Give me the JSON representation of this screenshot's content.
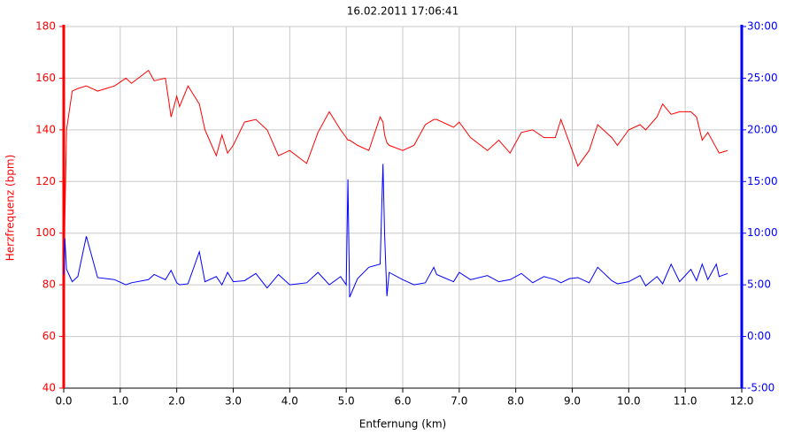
{
  "chart_data": {
    "type": "line",
    "title": "16.02.2011 17:06:41",
    "xlabel": "Entfernung (km)",
    "ylabel": "Herzfrequenz (bpm)",
    "x": [
      0,
      0.02,
      0.05,
      0.15,
      0.25,
      0.4,
      0.6,
      0.9,
      1.1,
      1.2,
      1.5,
      1.6,
      1.8,
      1.9,
      2.0,
      2.05,
      2.2,
      2.4,
      2.5,
      2.7,
      2.8,
      2.9,
      3.0,
      3.2,
      3.4,
      3.6,
      3.8,
      4.0,
      4.3,
      4.5,
      4.7,
      4.9,
      5.0,
      5.03,
      5.06,
      5.2,
      5.4,
      5.6,
      5.65,
      5.68,
      5.72,
      5.76,
      6.0,
      6.2,
      6.4,
      6.55,
      6.6,
      6.9,
      7.0,
      7.2,
      7.5,
      7.7,
      7.9,
      8.1,
      8.3,
      8.5,
      8.7,
      8.8,
      8.95,
      9.1,
      9.3,
      9.45,
      9.7,
      9.8,
      10.0,
      10.2,
      10.3,
      10.5,
      10.6,
      10.75,
      10.9,
      11.1,
      11.2,
      11.3,
      11.4,
      11.55,
      11.6,
      11.75
    ],
    "series": [
      {
        "color": "#ff0000",
        "values": [
          68,
          105,
          140,
          155,
          156,
          157,
          155,
          157,
          160,
          158,
          163,
          159,
          160,
          145,
          153,
          149,
          157,
          150,
          140,
          130,
          138,
          131,
          134,
          143,
          144,
          140,
          130,
          132,
          127,
          139,
          147,
          140,
          137,
          136,
          136,
          134,
          132,
          145,
          143,
          138,
          135,
          134,
          132,
          134,
          142,
          144,
          144,
          141,
          143,
          137,
          132,
          136,
          131,
          139,
          140,
          137,
          137,
          144,
          135,
          126,
          132,
          142,
          137,
          134,
          140,
          142,
          140,
          145,
          150,
          146,
          147,
          147,
          145,
          136,
          139,
          133,
          131,
          132
        ]
      },
      {
        "color": "#0000ff",
        "axis": "y2",
        "values": [
          6.0,
          9.5,
          6.5,
          5.3,
          5.8,
          9.7,
          5.7,
          5.5,
          5.0,
          5.2,
          5.5,
          6.0,
          5.5,
          6.4,
          5.2,
          5.0,
          5.1,
          8.2,
          5.3,
          5.8,
          5.0,
          6.2,
          5.3,
          5.4,
          6.1,
          4.7,
          6.0,
          5.0,
          5.2,
          6.2,
          5.0,
          5.8,
          5.0,
          15.2,
          3.8,
          5.6,
          6.7,
          7.0,
          16.7,
          9.8,
          3.9,
          6.2,
          5.5,
          5.0,
          5.2,
          6.7,
          6.0,
          5.3,
          6.2,
          5.5,
          5.9,
          5.3,
          5.5,
          6.1,
          5.2,
          5.8,
          5.5,
          5.2,
          5.6,
          5.7,
          5.2,
          6.7,
          5.4,
          5.1,
          5.3,
          5.9,
          4.9,
          5.8,
          5.1,
          7.0,
          5.3,
          6.5,
          5.4,
          7.0,
          5.5,
          7.0,
          5.8,
          6.1
        ]
      }
    ],
    "xlim": [
      0,
      12
    ],
    "xticks": [
      {
        "value": 0,
        "label": "0.0"
      },
      {
        "value": 1,
        "label": "1.0"
      },
      {
        "value": 2,
        "label": "2.0"
      },
      {
        "value": 3,
        "label": "3.0"
      },
      {
        "value": 4,
        "label": "4.0"
      },
      {
        "value": 5,
        "label": "5.0"
      },
      {
        "value": 6,
        "label": "6.0"
      },
      {
        "value": 7,
        "label": "7.0"
      },
      {
        "value": 8,
        "label": "8.0"
      },
      {
        "value": 9,
        "label": "9.0"
      },
      {
        "value": 10,
        "label": "10.0"
      },
      {
        "value": 11,
        "label": "11.0"
      },
      {
        "value": 12,
        "label": "12.0"
      }
    ],
    "ylim": [
      40,
      180
    ],
    "yticks": [
      40,
      60,
      80,
      100,
      120,
      140,
      160,
      180
    ],
    "y2lim": [
      -5,
      30
    ],
    "y2ticks": [
      {
        "value": -5,
        "label": "-5:00"
      },
      {
        "value": 0,
        "label": "0:00"
      },
      {
        "value": 5,
        "label": "5:00"
      },
      {
        "value": 10,
        "label": "10:00"
      },
      {
        "value": 15,
        "label": "15:00"
      },
      {
        "value": 20,
        "label": "20:00"
      },
      {
        "value": 25,
        "label": "25:00"
      },
      {
        "value": 30,
        "label": "30:00"
      }
    ],
    "ycolor": "#ff0000",
    "y2color": "#0000ff",
    "grid": true
  }
}
